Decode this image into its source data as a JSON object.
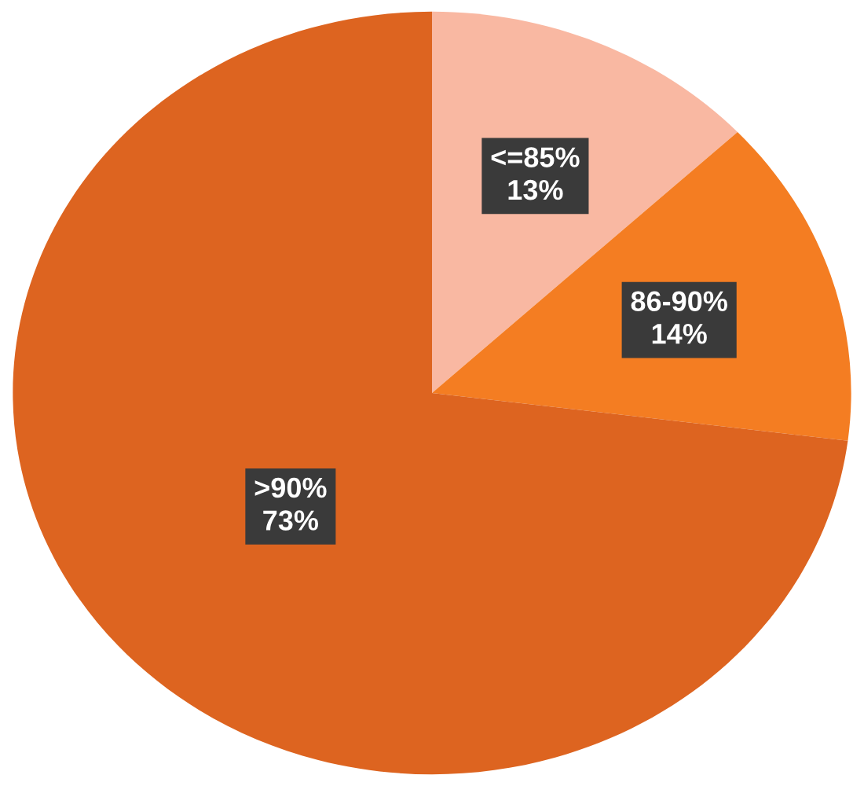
{
  "chart_data": {
    "type": "pie",
    "categories": [
      "<=85%",
      "86-90%",
      ">90%"
    ],
    "values": [
      13,
      14,
      73
    ],
    "colors": [
      "#f9b8a2",
      "#f47d22",
      "#dd6420"
    ],
    "value_labels": [
      "13%",
      "14%",
      "73%"
    ],
    "legend": false
  }
}
